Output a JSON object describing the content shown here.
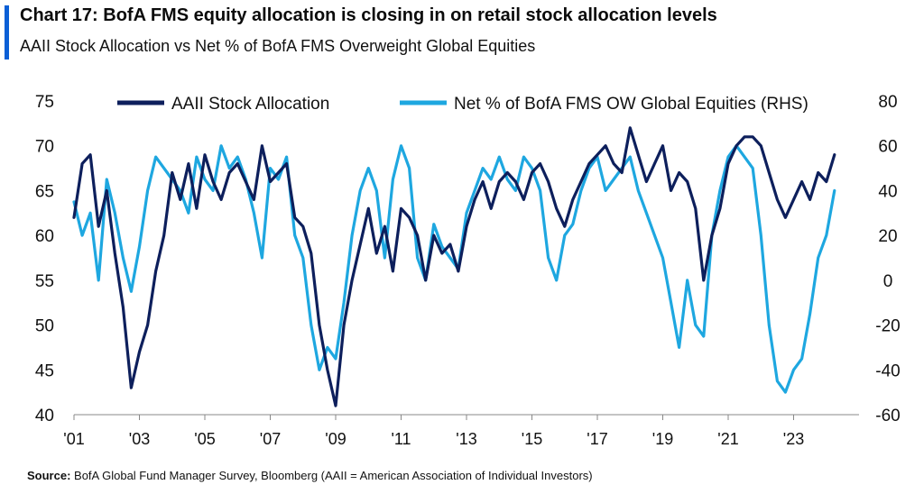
{
  "title": "Chart 17: BofA FMS equity allocation is closing in on retail stock allocation levels",
  "subtitle": "AAII Stock Allocation vs Net % of BofA FMS Overweight Global Equities",
  "source_label": "Source:",
  "source_text": "BofA Global Fund Manager Survey, Bloomberg (AAII = American Association of Individual Investors)",
  "colors": {
    "accent": "#0a5fd6",
    "aaii": "#0d1f5c",
    "fms": "#1ea7e0"
  },
  "chart_data": {
    "type": "line",
    "legend_position": "top",
    "grid": false,
    "x_ticks": [
      "'01",
      "'03",
      "'05",
      "'07",
      "'09",
      "'11",
      "'13",
      "'15",
      "'17",
      "'19",
      "'21",
      "'23"
    ],
    "x_range": [
      2001.0,
      2025.0
    ],
    "ylim_left": [
      40,
      75
    ],
    "yticks_left": [
      75,
      70,
      65,
      60,
      55,
      50,
      45,
      40
    ],
    "ylim_right": [
      -60,
      80
    ],
    "yticks_right": [
      80,
      60,
      40,
      20,
      0,
      -20,
      -40,
      -60
    ],
    "series": [
      {
        "name": "AAII Stock Allocation",
        "axis": "left",
        "x": [
          2001.0,
          2001.25,
          2001.5,
          2001.75,
          2002.0,
          2002.25,
          2002.5,
          2002.75,
          2003.0,
          2003.25,
          2003.5,
          2003.75,
          2004.0,
          2004.25,
          2004.5,
          2004.75,
          2005.0,
          2005.25,
          2005.5,
          2005.75,
          2006.0,
          2006.25,
          2006.5,
          2006.75,
          2007.0,
          2007.25,
          2007.5,
          2007.75,
          2008.0,
          2008.25,
          2008.5,
          2008.75,
          2009.0,
          2009.25,
          2009.5,
          2009.75,
          2010.0,
          2010.25,
          2010.5,
          2010.75,
          2011.0,
          2011.25,
          2011.5,
          2011.75,
          2012.0,
          2012.25,
          2012.5,
          2012.75,
          2013.0,
          2013.25,
          2013.5,
          2013.75,
          2014.0,
          2014.25,
          2014.5,
          2014.75,
          2015.0,
          2015.25,
          2015.5,
          2015.75,
          2016.0,
          2016.25,
          2016.5,
          2016.75,
          2017.0,
          2017.25,
          2017.5,
          2017.75,
          2018.0,
          2018.25,
          2018.5,
          2018.75,
          2019.0,
          2019.25,
          2019.5,
          2019.75,
          2020.0,
          2020.25,
          2020.5,
          2020.75,
          2021.0,
          2021.25,
          2021.5,
          2021.75,
          2022.0,
          2022.25,
          2022.5,
          2022.75,
          2023.0,
          2023.25,
          2023.5,
          2023.75,
          2024.0,
          2024.25
        ],
        "values": [
          62,
          68,
          69,
          61,
          65,
          58,
          52,
          43,
          47,
          50,
          56,
          60,
          67,
          64,
          68,
          63,
          69,
          66,
          64,
          67,
          68,
          66,
          64,
          70,
          66,
          67,
          68,
          62,
          61,
          58,
          50,
          45,
          41,
          50,
          55,
          59,
          63,
          58,
          61,
          56,
          63,
          62,
          60,
          55,
          60,
          58,
          59,
          56,
          61,
          64,
          66,
          63,
          66,
          67,
          66,
          64,
          67,
          68,
          66,
          63,
          61,
          64,
          66,
          68,
          69,
          70,
          68,
          67,
          72,
          69,
          66,
          68,
          70,
          65,
          67,
          66,
          63,
          55,
          60,
          63,
          68,
          70,
          71,
          71,
          70,
          67,
          64,
          62,
          64,
          66,
          64,
          67,
          66,
          69
        ]
      },
      {
        "name": "Net % of BofA FMS OW Global Equities (RHS)",
        "axis": "right",
        "x": [
          2001.0,
          2001.25,
          2001.5,
          2001.75,
          2002.0,
          2002.25,
          2002.5,
          2002.75,
          2003.0,
          2003.25,
          2003.5,
          2003.75,
          2004.0,
          2004.25,
          2004.5,
          2004.75,
          2005.0,
          2005.25,
          2005.5,
          2005.75,
          2006.0,
          2006.25,
          2006.5,
          2006.75,
          2007.0,
          2007.25,
          2007.5,
          2007.75,
          2008.0,
          2008.25,
          2008.5,
          2008.75,
          2009.0,
          2009.25,
          2009.5,
          2009.75,
          2010.0,
          2010.25,
          2010.5,
          2010.75,
          2011.0,
          2011.25,
          2011.5,
          2011.75,
          2012.0,
          2012.25,
          2012.5,
          2012.75,
          2013.0,
          2013.25,
          2013.5,
          2013.75,
          2014.0,
          2014.25,
          2014.5,
          2014.75,
          2015.0,
          2015.25,
          2015.5,
          2015.75,
          2016.0,
          2016.25,
          2016.5,
          2016.75,
          2017.0,
          2017.25,
          2017.5,
          2017.75,
          2018.0,
          2018.25,
          2018.5,
          2018.75,
          2019.0,
          2019.25,
          2019.5,
          2019.75,
          2020.0,
          2020.25,
          2020.5,
          2020.75,
          2021.0,
          2021.25,
          2021.5,
          2021.75,
          2022.0,
          2022.25,
          2022.5,
          2022.75,
          2023.0,
          2023.25,
          2023.5,
          2023.75,
          2024.0,
          2024.25
        ],
        "values": [
          35,
          20,
          30,
          0,
          45,
          30,
          10,
          -5,
          15,
          40,
          55,
          50,
          45,
          40,
          30,
          55,
          45,
          40,
          60,
          50,
          55,
          45,
          30,
          10,
          50,
          45,
          55,
          20,
          10,
          -20,
          -40,
          -30,
          -35,
          -10,
          20,
          40,
          50,
          40,
          10,
          45,
          60,
          50,
          10,
          0,
          25,
          15,
          10,
          5,
          30,
          40,
          50,
          45,
          55,
          45,
          40,
          55,
          50,
          40,
          10,
          0,
          20,
          25,
          40,
          50,
          55,
          40,
          45,
          50,
          55,
          40,
          30,
          20,
          10,
          -10,
          -30,
          0,
          -20,
          -25,
          20,
          40,
          55,
          60,
          55,
          50,
          20,
          -20,
          -45,
          -50,
          -40,
          -35,
          -15,
          10,
          20,
          40
        ]
      }
    ]
  }
}
